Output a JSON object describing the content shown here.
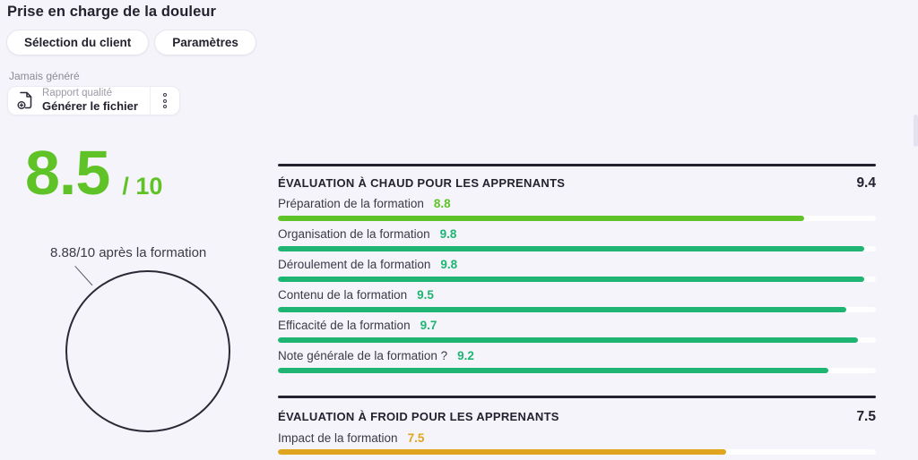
{
  "page": {
    "title": "Prise en charge de la douleur"
  },
  "toolbar": {
    "buttons": [
      {
        "label": "Sélection du client"
      },
      {
        "label": "Paramètres"
      }
    ]
  },
  "report_card": {
    "status": "Jamais généré",
    "title": "Rapport qualité",
    "action": "Générer le fichier",
    "icon": "file-plus-icon",
    "menu_icon": "kebab-menu-icon"
  },
  "score": {
    "value": "8.5",
    "denominator": "/ 10",
    "color": "#5FC327",
    "annotation": "8.88/10 après la formation"
  },
  "colors": {
    "light_green": "#5FC327",
    "emerald": "#1EB573",
    "amber": "#DFA51F",
    "dark": "#23222F",
    "background": "#F5F4FA"
  },
  "chart_data": [
    {
      "type": "bar",
      "title": "ÉVALUATION À CHAUD POUR LES APPRENANTS",
      "overall": "9.4",
      "xlim": [
        0,
        10
      ],
      "categories": [
        "Préparation de la formation",
        "Organisation de la formation",
        "Déroulement de la formation",
        "Contenu de la formation",
        "Efficacité de la formation",
        "Note générale de la formation ?"
      ],
      "values": [
        8.8,
        9.8,
        9.8,
        9.5,
        9.7,
        9.2
      ],
      "bar_colors": [
        "#5FC327",
        "#1EB573",
        "#1EB573",
        "#1EB573",
        "#1EB573",
        "#1EB573"
      ]
    },
    {
      "type": "bar",
      "title": "ÉVALUATION À FROID POUR LES APPRENANTS",
      "overall": "7.5",
      "xlim": [
        0,
        10
      ],
      "categories": [
        "Impact de la formation"
      ],
      "values": [
        7.5
      ],
      "bar_colors": [
        "#DFA51F"
      ]
    }
  ]
}
